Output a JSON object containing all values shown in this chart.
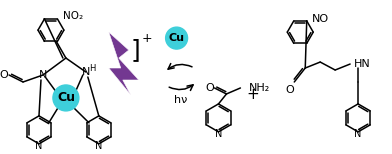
{
  "bg_color": "#ffffff",
  "cu_color": "#3ecfda",
  "lightning_color": "#6b2d8b",
  "line_color": "#000000",
  "figsize": [
    3.92,
    1.54
  ],
  "dpi": 100,
  "cu_label": "Cu",
  "hv_text": "hν",
  "no2_text": "NO₂",
  "no_text": "NO",
  "nh2_text": "NH₂",
  "hn_text": "HN",
  "o_text": "O",
  "n_text": "N",
  "h_text": "H",
  "plus_text": "+"
}
